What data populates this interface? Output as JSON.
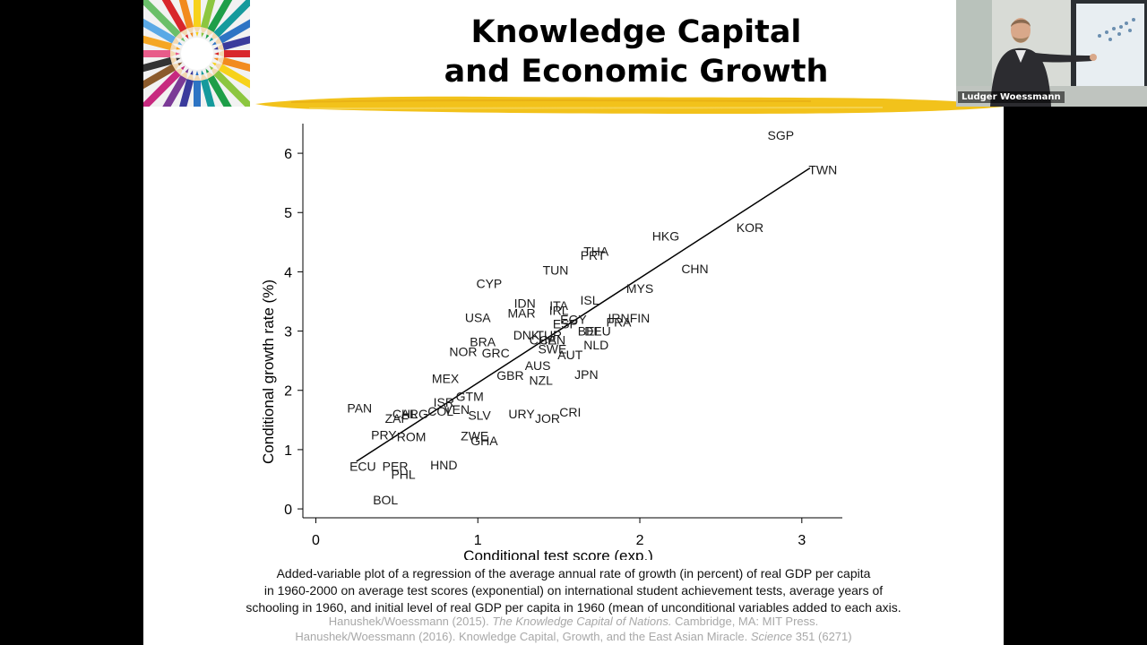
{
  "slide": {
    "title_line1": "Knowledge Capital",
    "title_line2": "and Economic Growth",
    "caption": [
      "Added-variable plot of a regression of the average annual rate of growth (in percent) of real GDP per capita",
      "in 1960-2000 on average test scores (exponential) on international student achievement tests, average years of",
      "schooling in 1960, and initial level of real GDP per capita in 1960 (mean of unconditional variables added to each axis."
    ],
    "ref1": {
      "before": "Hanushek/Woessmann (2015). ",
      "italic": "The Knowledge Capital of Nations.",
      "after": " Cambridge, MA: MIT Press."
    },
    "ref2": {
      "before": "Hanushek/Woessmann (2016). Knowledge Capital, Growth, and the East Asian Miracle. ",
      "italic": "Science",
      "after": " 351 (6271)"
    },
    "accent_color": "#f2c21b"
  },
  "video": {
    "speaker_name": "Ludger Woessmann"
  },
  "chart_data": {
    "type": "scatter",
    "title": "",
    "xlabel": "Conditional test score (exp.)",
    "ylabel": "Conditional growth rate (%)",
    "xlim": [
      -0.08,
      3.25
    ],
    "ylim": [
      -0.15,
      6.5
    ],
    "xticks": [
      0,
      1,
      2,
      3
    ],
    "yticks": [
      0,
      1,
      2,
      3,
      4,
      5,
      6
    ],
    "grid": false,
    "marker": "country-code-labels",
    "fit_line": {
      "x": [
        0.25,
        3.05
      ],
      "y": [
        0.8,
        5.75
      ]
    },
    "points": [
      {
        "label": "SGP",
        "x": 2.87,
        "y": 6.3
      },
      {
        "label": "TWN",
        "x": 3.13,
        "y": 5.72
      },
      {
        "label": "KOR",
        "x": 2.68,
        "y": 4.75
      },
      {
        "label": "HKG",
        "x": 2.16,
        "y": 4.6
      },
      {
        "label": "CHN",
        "x": 2.34,
        "y": 4.05
      },
      {
        "label": "THA",
        "x": 1.73,
        "y": 4.35
      },
      {
        "label": "PRT",
        "x": 1.71,
        "y": 4.28
      },
      {
        "label": "TUN",
        "x": 1.48,
        "y": 4.03
      },
      {
        "label": "MYS",
        "x": 2.0,
        "y": 3.72
      },
      {
        "label": "CYP",
        "x": 1.07,
        "y": 3.8
      },
      {
        "label": "IDN",
        "x": 1.29,
        "y": 3.47
      },
      {
        "label": "ITA",
        "x": 1.5,
        "y": 3.43
      },
      {
        "label": "ISL",
        "x": 1.69,
        "y": 3.52
      },
      {
        "label": "IRL",
        "x": 1.5,
        "y": 3.35
      },
      {
        "label": "MAR",
        "x": 1.27,
        "y": 3.3
      },
      {
        "label": "USA",
        "x": 1.0,
        "y": 3.23
      },
      {
        "label": "EGY",
        "x": 1.59,
        "y": 3.2
      },
      {
        "label": "ESP",
        "x": 1.54,
        "y": 3.12
      },
      {
        "label": "IRN",
        "x": 1.87,
        "y": 3.22
      },
      {
        "label": "FIN",
        "x": 2.0,
        "y": 3.22
      },
      {
        "label": "FRA",
        "x": 1.87,
        "y": 3.15
      },
      {
        "label": "BEL",
        "x": 1.69,
        "y": 3.0
      },
      {
        "label": "DEU",
        "x": 1.74,
        "y": 3.0
      },
      {
        "label": "DNK",
        "x": 1.3,
        "y": 2.93
      },
      {
        "label": "TUR",
        "x": 1.44,
        "y": 2.93
      },
      {
        "label": "CHE",
        "x": 1.4,
        "y": 2.85
      },
      {
        "label": "CAN",
        "x": 1.46,
        "y": 2.85
      },
      {
        "label": "BRA",
        "x": 1.03,
        "y": 2.82
      },
      {
        "label": "NLD",
        "x": 1.73,
        "y": 2.77
      },
      {
        "label": "SWE",
        "x": 1.46,
        "y": 2.7
      },
      {
        "label": "NOR",
        "x": 0.91,
        "y": 2.65
      },
      {
        "label": "GRC",
        "x": 1.11,
        "y": 2.63
      },
      {
        "label": "AUT",
        "x": 1.57,
        "y": 2.6
      },
      {
        "label": "AUS",
        "x": 1.37,
        "y": 2.42
      },
      {
        "label": "GBR",
        "x": 1.2,
        "y": 2.25
      },
      {
        "label": "NZL",
        "x": 1.39,
        "y": 2.17
      },
      {
        "label": "JPN",
        "x": 1.67,
        "y": 2.27
      },
      {
        "label": "MEX",
        "x": 0.8,
        "y": 2.2
      },
      {
        "label": "GTM",
        "x": 0.95,
        "y": 1.9
      },
      {
        "label": "ISR",
        "x": 0.79,
        "y": 1.8
      },
      {
        "label": "COL",
        "x": 0.77,
        "y": 1.65
      },
      {
        "label": "VEN",
        "x": 0.87,
        "y": 1.68
      },
      {
        "label": "PAN",
        "x": 0.27,
        "y": 1.7
      },
      {
        "label": "CHL",
        "x": 0.55,
        "y": 1.6
      },
      {
        "label": "ARG",
        "x": 0.61,
        "y": 1.6
      },
      {
        "label": "ZAF",
        "x": 0.5,
        "y": 1.53
      },
      {
        "label": "SLV",
        "x": 1.01,
        "y": 1.58
      },
      {
        "label": "URY",
        "x": 1.27,
        "y": 1.6
      },
      {
        "label": "JOR",
        "x": 1.43,
        "y": 1.53
      },
      {
        "label": "CRI",
        "x": 1.57,
        "y": 1.63
      },
      {
        "label": "PRY",
        "x": 0.42,
        "y": 1.25
      },
      {
        "label": "ROM",
        "x": 0.59,
        "y": 1.22
      },
      {
        "label": "ZWE",
        "x": 0.98,
        "y": 1.23
      },
      {
        "label": "GHA",
        "x": 1.04,
        "y": 1.15
      },
      {
        "label": "ECU",
        "x": 0.29,
        "y": 0.72
      },
      {
        "label": "PER",
        "x": 0.49,
        "y": 0.72
      },
      {
        "label": "HND",
        "x": 0.79,
        "y": 0.74
      },
      {
        "label": "PHL",
        "x": 0.54,
        "y": 0.58
      },
      {
        "label": "BOL",
        "x": 0.43,
        "y": 0.15
      }
    ]
  }
}
